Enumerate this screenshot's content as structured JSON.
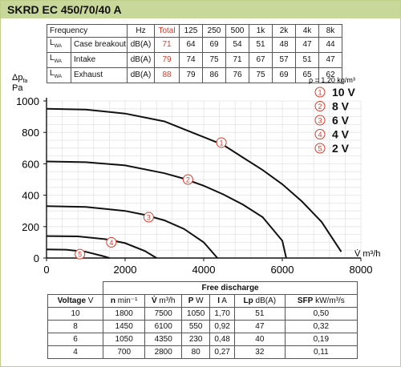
{
  "title": "SKRD EC 450/70/40 A",
  "sound_table": {
    "header": [
      "Frequency",
      "Hz",
      "Total",
      "125",
      "250",
      "500",
      "1k",
      "2k",
      "4k",
      "8k"
    ],
    "rows": [
      {
        "label": "L",
        "sub": "WA",
        "name": "Case breakout",
        "unit": "dB(A)",
        "values": [
          "71",
          "64",
          "69",
          "54",
          "51",
          "48",
          "47",
          "44"
        ]
      },
      {
        "label": "L",
        "sub": "WA",
        "name": "Intake",
        "unit": "dB(A)",
        "values": [
          "79",
          "74",
          "75",
          "71",
          "67",
          "57",
          "51",
          "47"
        ]
      },
      {
        "label": "L",
        "sub": "WA",
        "name": "Exhaust",
        "unit": "dB(A)",
        "values": [
          "88",
          "79",
          "86",
          "76",
          "75",
          "69",
          "65",
          "62"
        ]
      }
    ]
  },
  "chart_data": {
    "type": "line",
    "ylabel_line1": "Δp",
    "ylabel_sub": "fa",
    "ylabel_line2": "Pa",
    "xlabel": "V̇ m³/h",
    "density": "ρ = 1,20 kg/m³",
    "xlim": [
      0,
      8000
    ],
    "ylim": [
      0,
      1000
    ],
    "xticks": [
      "0",
      "2000",
      "4000",
      "6000",
      "8000"
    ],
    "yticks": [
      "0",
      "200",
      "400",
      "600",
      "800",
      "1000"
    ],
    "grid": true,
    "legend_position": "top-right",
    "legend": [
      {
        "marker": "1",
        "label": "10 V"
      },
      {
        "marker": "2",
        "label": "8 V"
      },
      {
        "marker": "3",
        "label": "6 V"
      },
      {
        "marker": "4",
        "label": "4 V"
      },
      {
        "marker": "5",
        "label": "2 V"
      }
    ],
    "series": [
      {
        "marker": "1",
        "label_at": [
          4450,
          735
        ],
        "points": [
          [
            0,
            950
          ],
          [
            1000,
            945
          ],
          [
            2000,
            920
          ],
          [
            3000,
            870
          ],
          [
            3500,
            820
          ],
          [
            4000,
            770
          ],
          [
            4500,
            720
          ],
          [
            5000,
            640
          ],
          [
            5500,
            560
          ],
          [
            6000,
            470
          ],
          [
            6500,
            360
          ],
          [
            7000,
            230
          ],
          [
            7500,
            40
          ]
        ]
      },
      {
        "marker": "2",
        "label_at": [
          3600,
          500
        ],
        "points": [
          [
            0,
            615
          ],
          [
            1000,
            610
          ],
          [
            2000,
            590
          ],
          [
            3000,
            540
          ],
          [
            3500,
            505
          ],
          [
            4000,
            460
          ],
          [
            4500,
            405
          ],
          [
            5000,
            340
          ],
          [
            5500,
            260
          ],
          [
            6000,
            110
          ],
          [
            6100,
            0
          ]
        ]
      },
      {
        "marker": "3",
        "label_at": [
          2600,
          260
        ],
        "points": [
          [
            0,
            330
          ],
          [
            1000,
            325
          ],
          [
            2000,
            300
          ],
          [
            2500,
            275
          ],
          [
            3000,
            240
          ],
          [
            3500,
            185
          ],
          [
            4000,
            100
          ],
          [
            4350,
            0
          ]
        ]
      },
      {
        "marker": "4",
        "label_at": [
          1650,
          100
        ],
        "points": [
          [
            0,
            140
          ],
          [
            800,
            138
          ],
          [
            1500,
            120
          ],
          [
            2000,
            95
          ],
          [
            2500,
            45
          ],
          [
            2800,
            0
          ]
        ]
      },
      {
        "marker": "5",
        "label_at": [
          850,
          25
        ],
        "points": [
          [
            0,
            55
          ],
          [
            500,
            53
          ],
          [
            1000,
            40
          ],
          [
            1400,
            15
          ],
          [
            1600,
            0
          ]
        ]
      }
    ]
  },
  "free_discharge": {
    "title": "Free discharge",
    "headers": [
      {
        "bold": "Voltage",
        "unit": " V"
      },
      {
        "bold": "n",
        "unit": " min⁻¹"
      },
      {
        "bold": "V̇",
        "unit": " m³/h"
      },
      {
        "bold": "P",
        "unit": " W"
      },
      {
        "bold": "I",
        "unit": " A"
      },
      {
        "bold": "Lp",
        "unit": " dB(A)"
      },
      {
        "bold": "SFP",
        "unit": " kW/m³/s"
      }
    ],
    "rows": [
      [
        "10",
        "1800",
        "7500",
        "1050",
        "1,70",
        "51",
        "0,50"
      ],
      [
        "8",
        "1450",
        "6100",
        "550",
        "0,92",
        "47",
        "0,32"
      ],
      [
        "6",
        "1050",
        "4350",
        "230",
        "0,48",
        "40",
        "0,19"
      ],
      [
        "4",
        "700",
        "2800",
        "80",
        "0,27",
        "32",
        "0,11"
      ]
    ]
  },
  "colors": {
    "title_bar": "#c8d89a",
    "marker": "#d83a2a",
    "grid": "#e6e6e6",
    "curve": "#111111"
  }
}
